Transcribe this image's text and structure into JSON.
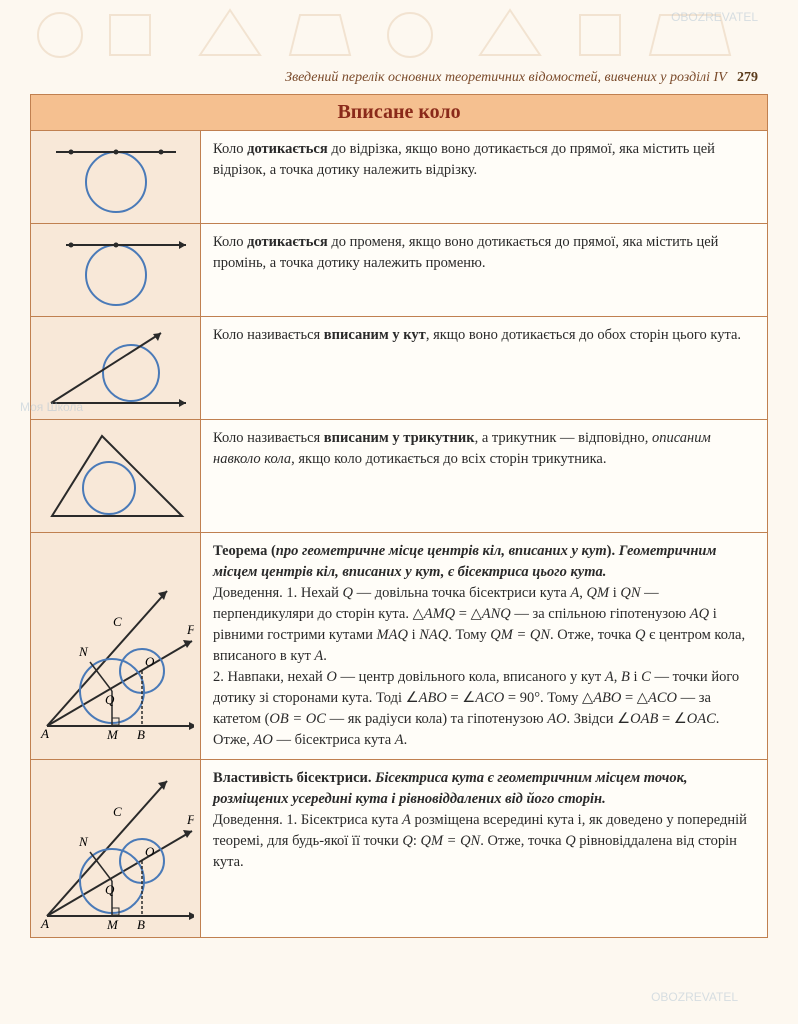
{
  "header": {
    "title_italic": "Зведений перелік основних теоретичних відомостей, вивчених у розділі IV",
    "page_number": "279"
  },
  "table": {
    "title": "Вписане коло",
    "rows": [
      {
        "text_segments": [
          {
            "t": "Коло ",
            "b": false,
            "i": false
          },
          {
            "t": "дотикається",
            "b": true,
            "i": false
          },
          {
            "t": " до відрізка, якщо воно дотикається до прямої, яка містить цей відрізок, а точка дотику належить відрізку.",
            "b": false,
            "i": false
          }
        ]
      },
      {
        "text_segments": [
          {
            "t": "Коло ",
            "b": false,
            "i": false
          },
          {
            "t": "дотикається",
            "b": true,
            "i": false
          },
          {
            "t": " до променя, якщо воно дотикається до прямої, яка містить цей промінь, а точка дотику належить променю.",
            "b": false,
            "i": false
          }
        ]
      },
      {
        "text_segments": [
          {
            "t": "Коло називається ",
            "b": false,
            "i": false
          },
          {
            "t": "вписаним у кут",
            "b": true,
            "i": false
          },
          {
            "t": ", якщо воно дотикається до обох сторін цього кута.",
            "b": false,
            "i": false
          }
        ]
      },
      {
        "text_segments": [
          {
            "t": "Коло називається ",
            "b": false,
            "i": false
          },
          {
            "t": "вписаним у трикутник",
            "b": true,
            "i": false
          },
          {
            "t": ", а трикутник — відповідно, ",
            "b": false,
            "i": false
          },
          {
            "t": "описаним навколо кола",
            "b": false,
            "i": true
          },
          {
            "t": ", якщо коло дотикається до всіх сторін трикутника.",
            "b": false,
            "i": false
          }
        ]
      },
      {
        "text_segments": [
          {
            "t": "Теорема (",
            "b": true,
            "i": false
          },
          {
            "t": "про геометричне місце центрів кіл, вписаних у кут",
            "b": true,
            "i": true
          },
          {
            "t": "). ",
            "b": true,
            "i": false
          },
          {
            "t": "Геометричним місцем центрів кіл, вписаних у кут, є бісектриса цього кута.",
            "b": true,
            "i": true
          },
          {
            "t": "\nДоведення. 1. Нехай ",
            "b": false,
            "i": false
          },
          {
            "t": "Q",
            "b": false,
            "i": true
          },
          {
            "t": " — довільна точка бісектриси кута ",
            "b": false,
            "i": false
          },
          {
            "t": "A",
            "b": false,
            "i": true
          },
          {
            "t": ", ",
            "b": false,
            "i": false
          },
          {
            "t": "QM",
            "b": false,
            "i": true
          },
          {
            "t": " і ",
            "b": false,
            "i": false
          },
          {
            "t": "QN",
            "b": false,
            "i": true
          },
          {
            "t": " — перпендикуляри до сторін кута. △",
            "b": false,
            "i": false
          },
          {
            "t": "AMQ",
            "b": false,
            "i": true
          },
          {
            "t": " = △",
            "b": false,
            "i": false
          },
          {
            "t": "ANQ",
            "b": false,
            "i": true
          },
          {
            "t": " — за спільною гіпотенузою ",
            "b": false,
            "i": false
          },
          {
            "t": "AQ",
            "b": false,
            "i": true
          },
          {
            "t": " і рівними гострими кутами ",
            "b": false,
            "i": false
          },
          {
            "t": "MAQ",
            "b": false,
            "i": true
          },
          {
            "t": " і ",
            "b": false,
            "i": false
          },
          {
            "t": "NAQ",
            "b": false,
            "i": true
          },
          {
            "t": ". Тому ",
            "b": false,
            "i": false
          },
          {
            "t": "QM = QN",
            "b": false,
            "i": true
          },
          {
            "t": ". Отже, точка ",
            "b": false,
            "i": false
          },
          {
            "t": "Q",
            "b": false,
            "i": true
          },
          {
            "t": " є центром кола, вписаного в кут ",
            "b": false,
            "i": false
          },
          {
            "t": "A",
            "b": false,
            "i": true
          },
          {
            "t": ".\n2. Навпаки, нехай ",
            "b": false,
            "i": false
          },
          {
            "t": "O",
            "b": false,
            "i": true
          },
          {
            "t": " — центр довільного кола, вписаного у кут ",
            "b": false,
            "i": false
          },
          {
            "t": "A",
            "b": false,
            "i": true
          },
          {
            "t": ", ",
            "b": false,
            "i": false
          },
          {
            "t": "B",
            "b": false,
            "i": true
          },
          {
            "t": " і ",
            "b": false,
            "i": false
          },
          {
            "t": "C",
            "b": false,
            "i": true
          },
          {
            "t": " — точки його дотику зі сторонами кута. Тоді ∠",
            "b": false,
            "i": false
          },
          {
            "t": "ABO",
            "b": false,
            "i": true
          },
          {
            "t": " = ∠",
            "b": false,
            "i": false
          },
          {
            "t": "ACO",
            "b": false,
            "i": true
          },
          {
            "t": " = 90°. Тому △",
            "b": false,
            "i": false
          },
          {
            "t": "ABO",
            "b": false,
            "i": true
          },
          {
            "t": " = △",
            "b": false,
            "i": false
          },
          {
            "t": "ACO",
            "b": false,
            "i": true
          },
          {
            "t": " — за катетом (",
            "b": false,
            "i": false
          },
          {
            "t": "OB = OC",
            "b": false,
            "i": true
          },
          {
            "t": " — як радіуси кола) та гіпотенузою ",
            "b": false,
            "i": false
          },
          {
            "t": "AO",
            "b": false,
            "i": true
          },
          {
            "t": ". Звідси ∠",
            "b": false,
            "i": false
          },
          {
            "t": "OAB",
            "b": false,
            "i": true
          },
          {
            "t": " = ∠",
            "b": false,
            "i": false
          },
          {
            "t": "OAC",
            "b": false,
            "i": true
          },
          {
            "t": ". Отже, ",
            "b": false,
            "i": false
          },
          {
            "t": "AO",
            "b": false,
            "i": true
          },
          {
            "t": " — бісектриса кута ",
            "b": false,
            "i": false
          },
          {
            "t": "A",
            "b": false,
            "i": true
          },
          {
            "t": ".",
            "b": false,
            "i": false
          }
        ]
      },
      {
        "text_segments": [
          {
            "t": "Властивість бісектриси. ",
            "b": true,
            "i": false
          },
          {
            "t": "Бісектриса кута є геометричним місцем точок, розміщених усередині кута і рівновіддалених від його сторін.",
            "b": true,
            "i": true
          },
          {
            "t": "\nДоведення. 1. Бісектриса кута ",
            "b": false,
            "i": false
          },
          {
            "t": "A",
            "b": false,
            "i": true
          },
          {
            "t": " розміщена всередині кута і, як доведено у попередній теоремі, для будь-якої її точки ",
            "b": false,
            "i": false
          },
          {
            "t": "Q",
            "b": false,
            "i": true
          },
          {
            "t": ": ",
            "b": false,
            "i": false
          },
          {
            "t": "QM = QN",
            "b": false,
            "i": true
          },
          {
            "t": ". Отже, точка ",
            "b": false,
            "i": false
          },
          {
            "t": "Q",
            "b": false,
            "i": true
          },
          {
            "t": " рівновіддалена від сторін кута.",
            "b": false,
            "i": false
          }
        ]
      }
    ]
  },
  "colors": {
    "page_bg": "#fdf8f0",
    "cell_bg": "#f8e8d8",
    "border": "#c08050",
    "title_bg": "#f5c090",
    "title_text": "#8a2a1a",
    "circle": "#4a7ab8",
    "line": "#2a2a2a"
  },
  "watermarks": [
    "OBOZREVATEL",
    "Моя Школа"
  ]
}
